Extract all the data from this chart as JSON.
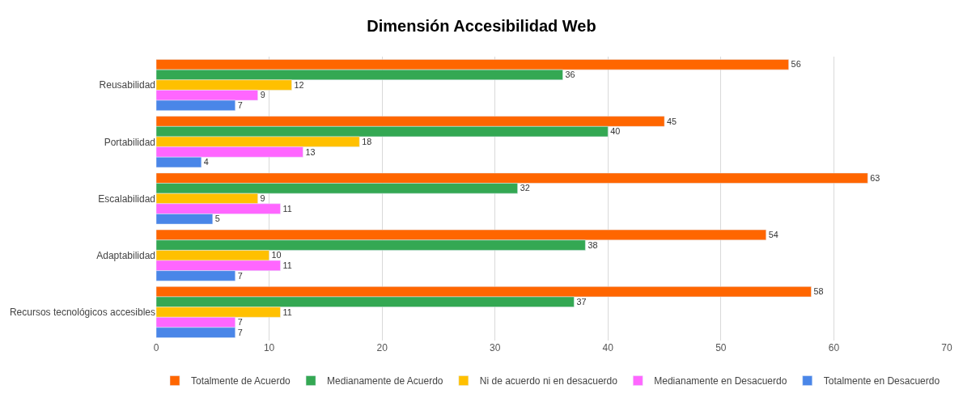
{
  "chart_data": {
    "type": "bar",
    "orientation": "horizontal",
    "title": "Dimensión Accesibilidad Web",
    "categories": [
      "Reusabilidad",
      "Portabilidad",
      "Escalabilidad",
      "Adaptabilidad",
      "Recursos tecnológicos accesibles"
    ],
    "series": [
      {
        "name": "Totalmente de Acuerdo",
        "color": "#ff6600",
        "values": [
          56,
          45,
          63,
          54,
          58
        ]
      },
      {
        "name": "Medianamente de Acuerdo",
        "color": "#34a853",
        "values": [
          36,
          40,
          32,
          38,
          37
        ]
      },
      {
        "name": "Ni de acuerdo ni en desacuerdo",
        "color": "#ffc000",
        "values": [
          12,
          18,
          9,
          10,
          11
        ]
      },
      {
        "name": "Medianamente en Desacuerdo",
        "color": "#ff66ff",
        "values": [
          9,
          13,
          11,
          11,
          7
        ]
      },
      {
        "name": "Totalmente en Desacuerdo",
        "color": "#4a86e8",
        "values": [
          7,
          4,
          5,
          7,
          7
        ]
      }
    ],
    "xlim": [
      0,
      70
    ],
    "xticks": [
      0,
      10,
      20,
      30,
      40,
      50,
      60,
      70
    ],
    "grid": "x",
    "legend": "bottom",
    "data_labels": true
  }
}
